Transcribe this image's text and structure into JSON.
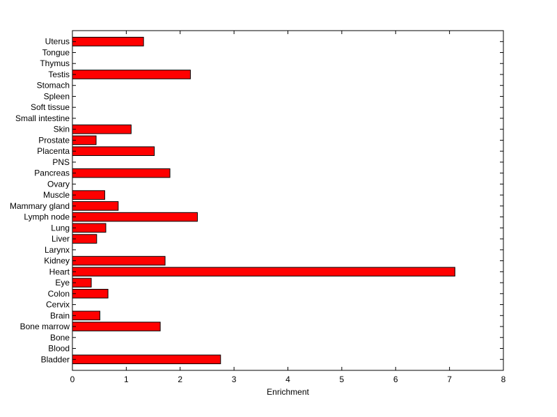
{
  "chart_data": {
    "type": "bar",
    "orientation": "horizontal",
    "title": "",
    "xlabel": "Enrichment",
    "ylabel": "",
    "xlim": [
      0,
      8
    ],
    "xticks": [
      0,
      1,
      2,
      3,
      4,
      5,
      6,
      7,
      8
    ],
    "grid": false,
    "legend": "none",
    "bar_color": "#ff0000",
    "bar_edge_color": "#000000",
    "categories": [
      "Bladder",
      "Blood",
      "Bone",
      "Bone marrow",
      "Brain",
      "Cervix",
      "Colon",
      "Eye",
      "Heart",
      "Kidney",
      "Larynx",
      "Liver",
      "Lung",
      "Lymph node",
      "Mammary gland",
      "Muscle",
      "Ovary",
      "Pancreas",
      "PNS",
      "Placenta",
      "Prostate",
      "Skin",
      "Small intestine",
      "Soft tissue",
      "Spleen",
      "Stomach",
      "Testis",
      "Thymus",
      "Tongue",
      "Uterus"
    ],
    "values": [
      2.75,
      0,
      0,
      1.63,
      0.51,
      0,
      0.66,
      0.35,
      7.1,
      1.72,
      0,
      0.45,
      0.62,
      2.32,
      0.85,
      0.6,
      0,
      1.81,
      0,
      1.52,
      0.44,
      1.09,
      0,
      0,
      0,
      0,
      2.19,
      0,
      0,
      1.32
    ]
  }
}
